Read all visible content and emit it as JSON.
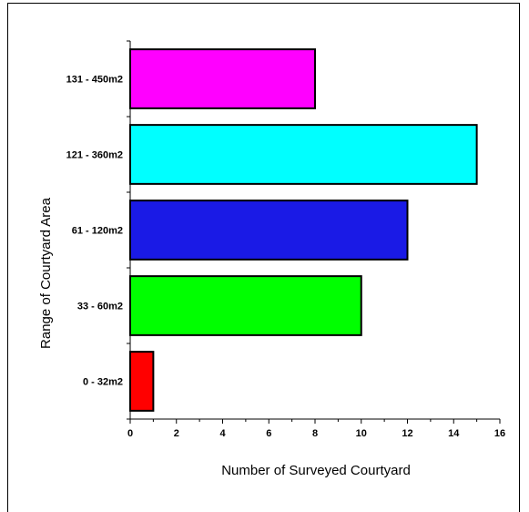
{
  "chart_data": {
    "type": "bar",
    "orientation": "horizontal",
    "categories": [
      "0 - 32m2",
      "33 - 60m2",
      "61 - 120m2",
      "121 - 360m2",
      "131 - 450m2"
    ],
    "values": [
      1,
      10,
      12,
      15,
      8
    ],
    "colors": [
      "#ff0000",
      "#00ff00",
      "#1a1ae6",
      "#00ffff",
      "#ff00ff"
    ],
    "xlabel": "Number of Surveyed Courtyard",
    "ylabel": "Range of Courtyard Area",
    "xlim": [
      0,
      16
    ],
    "xticks": [
      "0",
      "2",
      "4",
      "6",
      "8",
      "10",
      "12",
      "14",
      "16"
    ],
    "grid": false,
    "legend": "none"
  }
}
